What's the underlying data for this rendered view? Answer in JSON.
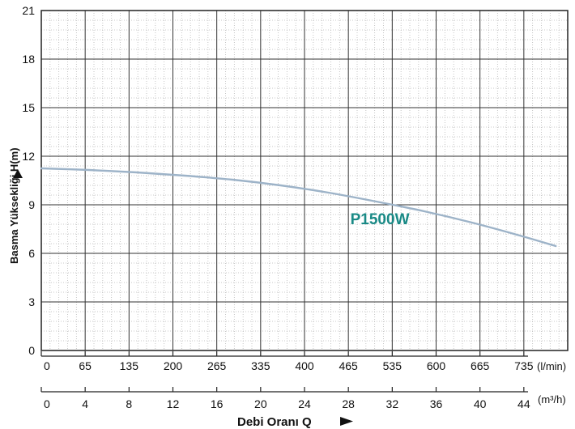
{
  "chart_data": {
    "type": "line",
    "ylabel": "Basma Yüksekliği H(m)",
    "xlabel": "Debi Oranı Q",
    "y_ticks": [
      0,
      3,
      6,
      9,
      12,
      15,
      18,
      21
    ],
    "ylim": [
      0,
      21
    ],
    "x_lmin_ticks": [
      "0",
      "65",
      "135",
      "200",
      "265",
      "335",
      "400",
      "465",
      "535",
      "600",
      "665",
      "735"
    ],
    "x_lmin_unit": "(l/min)",
    "x_m3h_ticks": [
      "0",
      "4",
      "8",
      "12",
      "16",
      "20",
      "24",
      "28",
      "32",
      "36",
      "40",
      "44"
    ],
    "x_m3h_unit": "(m³/h)",
    "xlim_m3h": [
      0,
      44
    ],
    "grid": true,
    "series": [
      {
        "name": "P1500W",
        "color": "#9db3c8",
        "label_color": "#1a8a86",
        "x": [
          0,
          4,
          8,
          12,
          16,
          20,
          24,
          28,
          32,
          36,
          40,
          43
        ],
        "y": [
          11.25,
          11.15,
          11.0,
          10.8,
          10.55,
          10.2,
          9.75,
          9.2,
          8.6,
          7.9,
          7.1,
          6.45
        ]
      }
    ]
  }
}
